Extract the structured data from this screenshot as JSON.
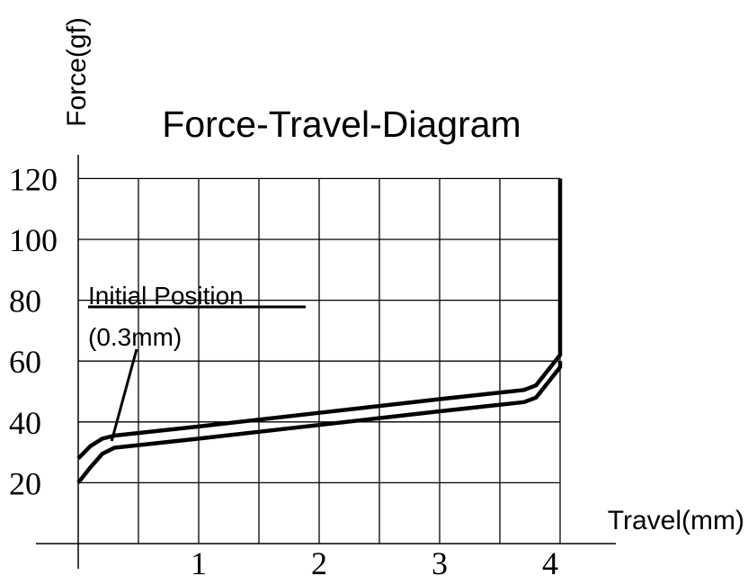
{
  "chart_data": {
    "type": "line",
    "title": "Force-Travel-Diagram",
    "xlabel": "Travel(mm)",
    "ylabel": "Force(gf)",
    "xlim": [
      0,
      4
    ],
    "ylim": [
      0,
      120
    ],
    "grid": true,
    "x_ticks": [
      1,
      2,
      3,
      4
    ],
    "y_ticks": [
      20,
      40,
      60,
      80,
      100,
      120
    ],
    "series": [
      {
        "values": [
          {
            "x": 0.0,
            "y": 28
          },
          {
            "x": 0.1,
            "y": 32
          },
          {
            "x": 0.2,
            "y": 34.5
          },
          {
            "x": 0.3,
            "y": 35.5
          },
          {
            "x": 1.0,
            "y": 38.5
          },
          {
            "x": 2.0,
            "y": 43
          },
          {
            "x": 3.0,
            "y": 47.5
          },
          {
            "x": 3.7,
            "y": 50.5
          },
          {
            "x": 3.8,
            "y": 52
          },
          {
            "x": 4.0,
            "y": 62
          },
          {
            "x": 4.0,
            "y": 120
          }
        ]
      },
      {
        "values": [
          {
            "x": 0.0,
            "y": 20
          },
          {
            "x": 0.1,
            "y": 25
          },
          {
            "x": 0.2,
            "y": 29.5
          },
          {
            "x": 0.3,
            "y": 31.5
          },
          {
            "x": 1.0,
            "y": 34.5
          },
          {
            "x": 2.0,
            "y": 39
          },
          {
            "x": 3.0,
            "y": 43.5
          },
          {
            "x": 3.7,
            "y": 46.5
          },
          {
            "x": 3.8,
            "y": 48
          },
          {
            "x": 4.0,
            "y": 58
          },
          {
            "x": 4.0,
            "y": 60
          }
        ]
      }
    ],
    "annotations": [
      {
        "text_lines": [
          "Initial Position",
          "(0.3mm)"
        ],
        "x": 0.3,
        "y": 35.5
      }
    ]
  }
}
